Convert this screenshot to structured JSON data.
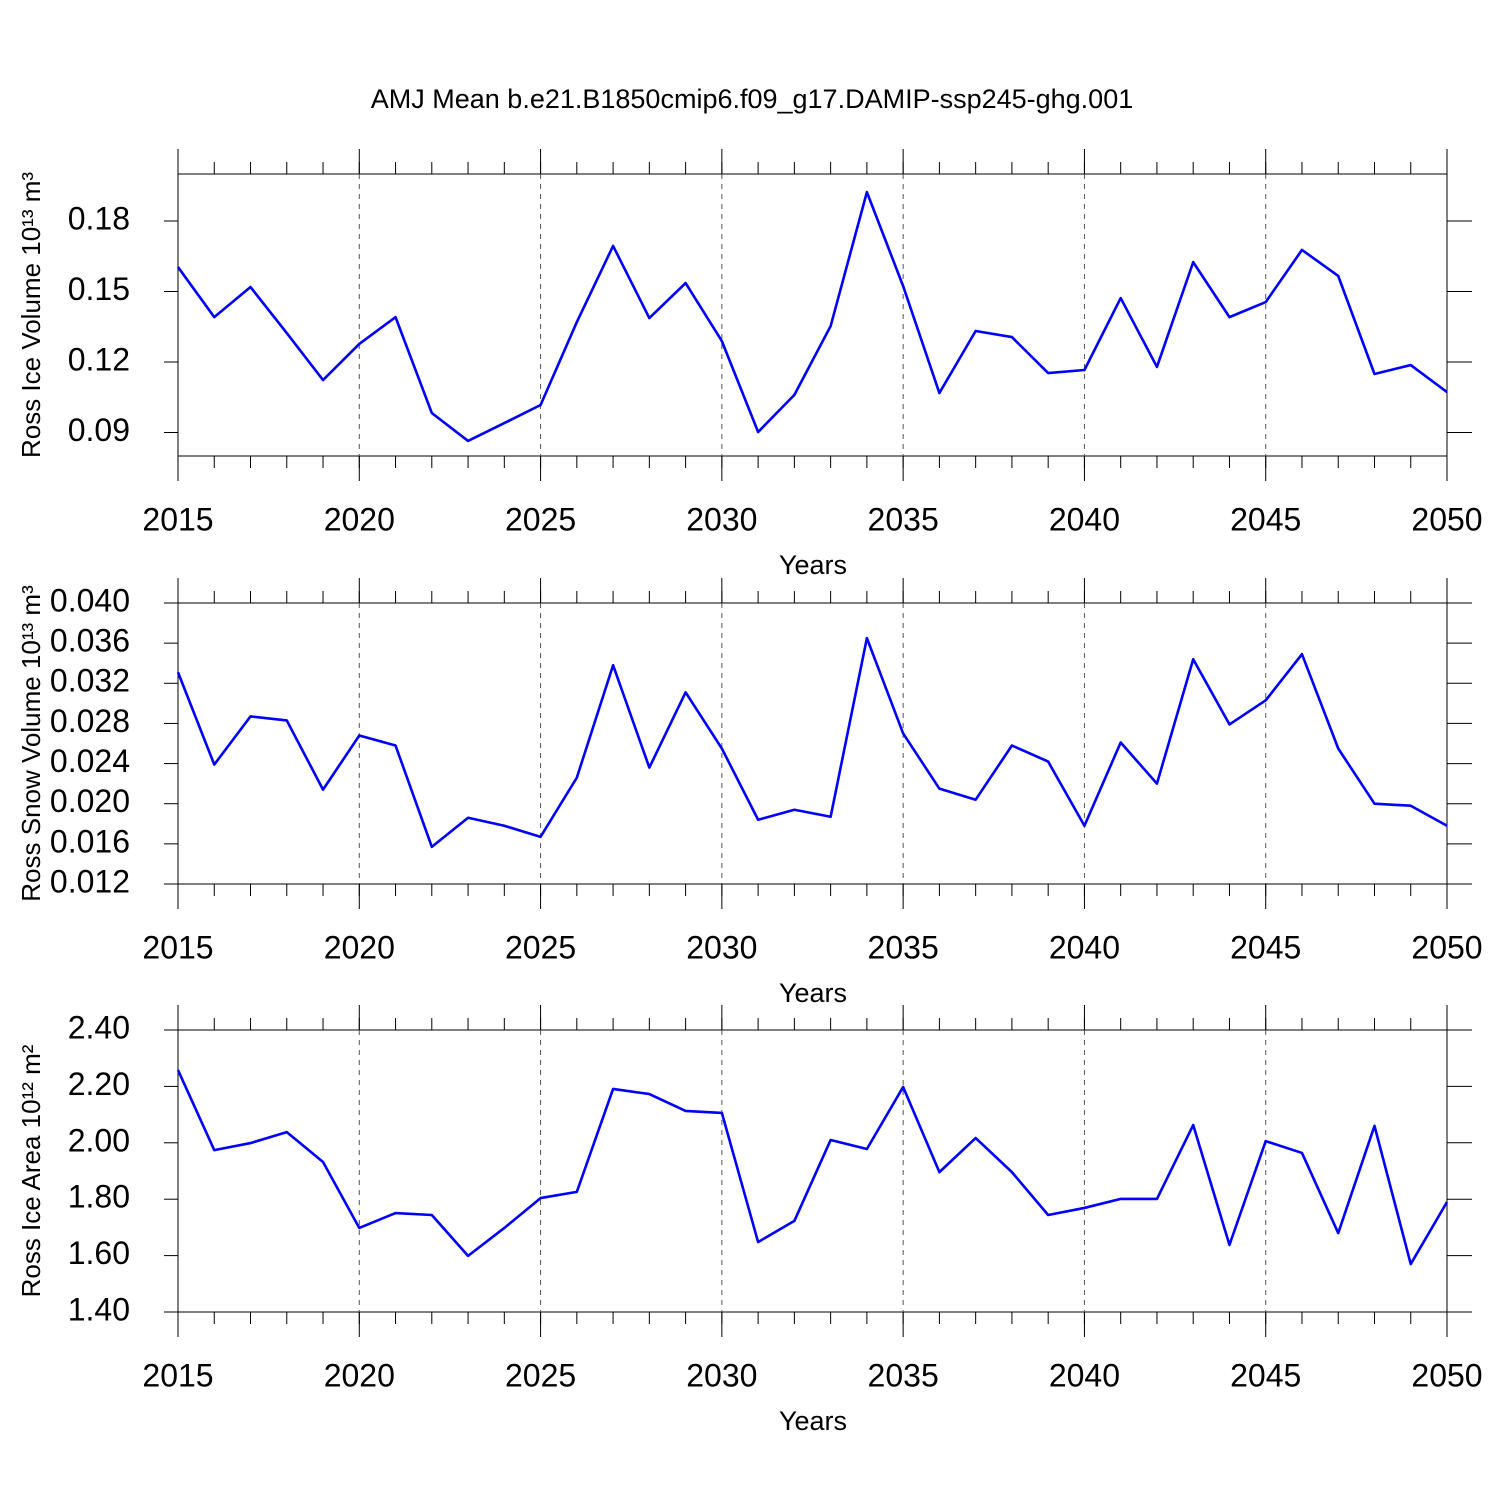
{
  "chart_data": [
    {
      "type": "line",
      "title": "AMJ Mean b.e21.B1850cmip6.f09_g17.DAMIP-ssp245-ghg.001",
      "ylabel": "Ross Ice Volume 10¹³ m³",
      "xlabel": "Years",
      "color": "#0000ff",
      "grid": true,
      "x": [
        2015,
        2016,
        2017,
        2018,
        2019,
        2020,
        2021,
        2022,
        2023,
        2024,
        2025,
        2026,
        2027,
        2028,
        2029,
        2030,
        2031,
        2032,
        2033,
        2034,
        2035,
        2036,
        2037,
        2038,
        2039,
        2040,
        2041,
        2042,
        2043,
        2044,
        2045,
        2046,
        2047,
        2048,
        2049,
        2050
      ],
      "values": [
        0.1604,
        0.1391,
        0.1519,
        0.1323,
        0.1123,
        0.1277,
        0.1391,
        0.0983,
        0.0864,
        0.094,
        0.1017,
        0.137,
        0.1694,
        0.1387,
        0.1536,
        0.1289,
        0.0902,
        0.106,
        0.1353,
        0.1923,
        0.1523,
        0.1068,
        0.1332,
        0.1306,
        0.1153,
        0.1166,
        0.1472,
        0.1179,
        0.1625,
        0.1391,
        0.1455,
        0.1677,
        0.1566,
        0.1149,
        0.1187,
        0.1072
      ],
      "xlim": [
        2015,
        2050
      ],
      "xticks": [
        2015,
        2020,
        2025,
        2030,
        2035,
        2040,
        2045,
        2050
      ],
      "ylim": [
        0.08,
        0.2
      ],
      "yticks": [
        0.09,
        0.12,
        0.15,
        0.18
      ]
    },
    {
      "type": "line",
      "ylabel": "Ross Snow Volume 10¹³ m³",
      "xlabel": "Years",
      "color": "#0000ff",
      "grid": true,
      "x": [
        2015,
        2016,
        2017,
        2018,
        2019,
        2020,
        2021,
        2022,
        2023,
        2024,
        2025,
        2026,
        2027,
        2028,
        2029,
        2030,
        2031,
        2032,
        2033,
        2034,
        2035,
        2036,
        2037,
        2038,
        2039,
        2040,
        2041,
        2042,
        2043,
        2044,
        2045,
        2046,
        2047,
        2048,
        2049,
        2050
      ],
      "values": [
        0.0331,
        0.0239,
        0.0287,
        0.0283,
        0.0214,
        0.0268,
        0.0258,
        0.0157,
        0.0186,
        0.0178,
        0.0167,
        0.0226,
        0.0338,
        0.0236,
        0.0311,
        0.0255,
        0.0184,
        0.0194,
        0.0187,
        0.0365,
        0.027,
        0.0215,
        0.0204,
        0.0258,
        0.0242,
        0.0178,
        0.0261,
        0.022,
        0.0344,
        0.0279,
        0.0303,
        0.0349,
        0.0255,
        0.02,
        0.0198,
        0.0178
      ],
      "xlim": [
        2015,
        2050
      ],
      "xticks": [
        2015,
        2020,
        2025,
        2030,
        2035,
        2040,
        2045,
        2050
      ],
      "ylim": [
        0.012,
        0.04
      ],
      "yticks": [
        0.012,
        0.016,
        {
          "value": 0.02,
          "label": "0.020"
        },
        0.024,
        0.028,
        0.032,
        0.036,
        {
          "value": 0.04,
          "label": "0.040"
        }
      ]
    },
    {
      "type": "line",
      "ylabel": "Ross Ice Area 10¹² m²",
      "xlabel": "Years",
      "color": "#0000ff",
      "grid": true,
      "x": [
        2015,
        2016,
        2017,
        2018,
        2019,
        2020,
        2021,
        2022,
        2023,
        2024,
        2025,
        2026,
        2027,
        2028,
        2029,
        2030,
        2031,
        2032,
        2033,
        2034,
        2035,
        2036,
        2037,
        2038,
        2039,
        2040,
        2041,
        2042,
        2043,
        2044,
        2045,
        2046,
        2047,
        2048,
        2049,
        2050
      ],
      "values": [
        2.258,
        1.974,
        1.999,
        2.038,
        1.932,
        1.698,
        1.751,
        1.744,
        1.599,
        1.698,
        1.804,
        1.826,
        2.191,
        2.173,
        2.113,
        2.106,
        1.648,
        1.723,
        2.01,
        1.978,
        2.198,
        1.896,
        2.017,
        1.896,
        1.744,
        1.769,
        1.801,
        1.801,
        2.063,
        1.638,
        2.006,
        1.964,
        1.68,
        2.06,
        1.57,
        1.79
      ],
      "xlim": [
        2015,
        2050
      ],
      "xticks": [
        2015,
        2020,
        2025,
        2030,
        2035,
        2040,
        2045,
        2050
      ],
      "ylim": [
        1.4,
        2.4
      ],
      "yticks": [
        {
          "value": 1.4,
          "label": "1.40"
        },
        {
          "value": 1.6,
          "label": "1.60"
        },
        {
          "value": 1.8,
          "label": "1.80"
        },
        {
          "value": 2.0,
          "label": "2.00"
        },
        {
          "value": 2.2,
          "label": "2.20"
        },
        {
          "value": 2.4,
          "label": "2.40"
        }
      ]
    }
  ]
}
